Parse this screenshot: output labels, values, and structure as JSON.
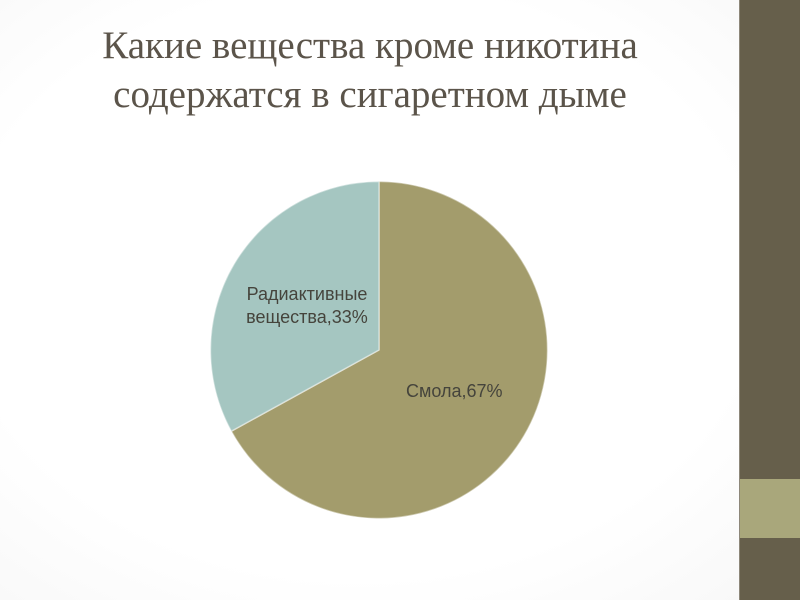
{
  "slide": {
    "title": "Какие вещества кроме никотина содержатся в сигаретном дыме"
  },
  "theme": {
    "background_center": "#ffffff",
    "background_edge": "#e3e3e3",
    "title_color": "#5b544a",
    "label_color": "#45443c",
    "sidebar_color": "#665f4b",
    "sidebar_accent_color": "#a9a77b",
    "sidebar_border_color": "#8d877a",
    "slice_divider_color": "rgba(255,255,255,0.45)"
  },
  "chart_data": {
    "type": "pie",
    "title": "Какие вещества кроме никотина содержатся в сигаретном дыме",
    "legend_position": "none",
    "start_angle_deg": 0,
    "direction": "clockwise",
    "segments": [
      {
        "label": "Смола",
        "value": 67,
        "unit": "%",
        "display": "Смола,67%",
        "color": "#a39c6c"
      },
      {
        "label": "Радиактивные вещества",
        "value": 33,
        "unit": "%",
        "display": "Радиактивные вещества,33%",
        "color": "#a5c6c1"
      }
    ]
  }
}
